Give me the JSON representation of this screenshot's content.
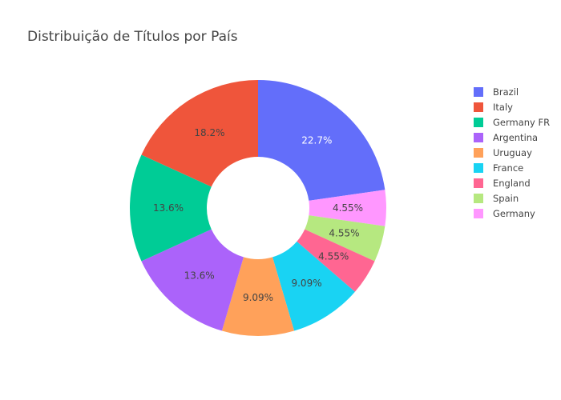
{
  "chart_data": {
    "type": "pie",
    "title": "Distribuição de Títulos por País",
    "hole": true,
    "legend_position": "right",
    "slices": [
      {
        "label": "Brazil",
        "value": 5,
        "percent_text": "22.7%",
        "color": "#636efa",
        "text_color": "#ffffff"
      },
      {
        "label": "Germany",
        "value": 1,
        "percent_text": "4.55%",
        "color": "#ff97ff",
        "text_color": "#444444"
      },
      {
        "label": "Spain",
        "value": 1,
        "percent_text": "4.55%",
        "color": "#b6e880",
        "text_color": "#444444"
      },
      {
        "label": "England",
        "value": 1,
        "percent_text": "4.55%",
        "color": "#ff6692",
        "text_color": "#444444"
      },
      {
        "label": "France",
        "value": 2,
        "percent_text": "9.09%",
        "color": "#19d3f3",
        "text_color": "#444444"
      },
      {
        "label": "Uruguay",
        "value": 2,
        "percent_text": "9.09%",
        "color": "#ffa15a",
        "text_color": "#444444"
      },
      {
        "label": "Argentina",
        "value": 3,
        "percent_text": "13.6%",
        "color": "#ab63fa",
        "text_color": "#444444"
      },
      {
        "label": "Germany FR",
        "value": 3,
        "percent_text": "13.6%",
        "color": "#00cc96",
        "text_color": "#444444"
      },
      {
        "label": "Italy",
        "value": 4,
        "percent_text": "18.2%",
        "color": "#ef553b",
        "text_color": "#444444"
      }
    ],
    "legend": [
      {
        "label": "Brazil",
        "color": "#636efa"
      },
      {
        "label": "Italy",
        "color": "#ef553b"
      },
      {
        "label": "Germany FR",
        "color": "#00cc96"
      },
      {
        "label": "Argentina",
        "color": "#ab63fa"
      },
      {
        "label": "Uruguay",
        "color": "#ffa15a"
      },
      {
        "label": "France",
        "color": "#19d3f3"
      },
      {
        "label": "England",
        "color": "#ff6692"
      },
      {
        "label": "Spain",
        "color": "#b6e880"
      },
      {
        "label": "Germany",
        "color": "#ff97ff"
      }
    ]
  }
}
